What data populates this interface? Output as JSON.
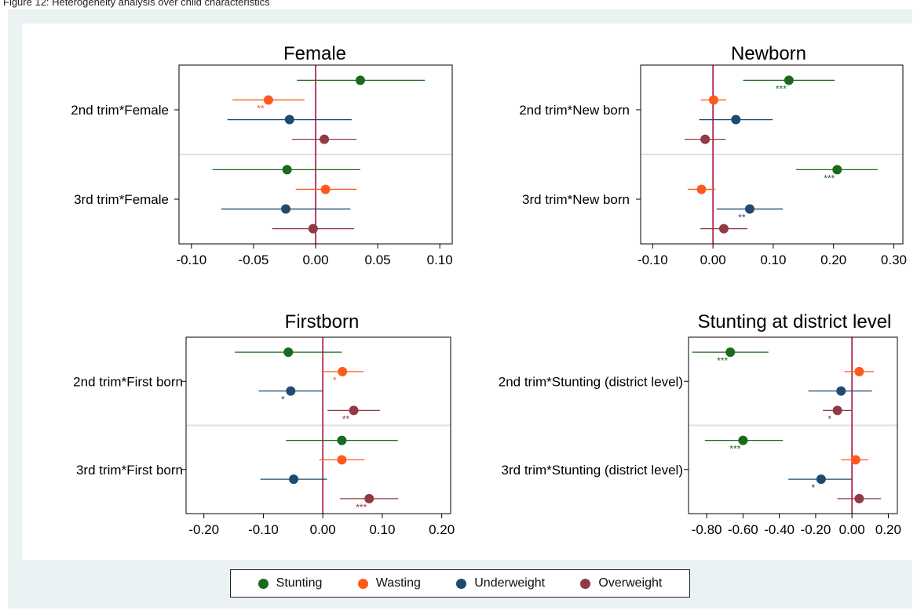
{
  "caption": "Figure 12: Heterogeneity analysis over child characteristics",
  "legend": [
    {
      "label": "Stunting",
      "color": "#1a6a1e"
    },
    {
      "label": "Wasting",
      "color": "#ff5a1e"
    },
    {
      "label": "Underweight",
      "color": "#1f4a72"
    },
    {
      "label": "Overweight",
      "color": "#8f3a44"
    }
  ],
  "chart_data": [
    {
      "type": "coefplot",
      "title": "Female",
      "categories": [
        "2nd trim*Female",
        "3rd trim*Female"
      ],
      "xlim": [
        -0.11,
        0.11
      ],
      "xticks": [
        -0.1,
        -0.05,
        0.0,
        0.05,
        0.1
      ],
      "xtick_labels": [
        "-0.10",
        "-0.05",
        "0.00",
        "0.05",
        "0.10"
      ],
      "series": [
        {
          "name": "Stunting",
          "values": [
            [
              0.036,
              -0.015,
              0.088,
              ""
            ],
            [
              -0.023,
              -0.083,
              0.036,
              ""
            ]
          ]
        },
        {
          "name": "Wasting",
          "values": [
            [
              -0.038,
              -0.067,
              -0.009,
              "**"
            ],
            [
              0.008,
              -0.016,
              0.033,
              ""
            ]
          ]
        },
        {
          "name": "Underweight",
          "values": [
            [
              -0.021,
              -0.071,
              0.029,
              ""
            ],
            [
              -0.024,
              -0.076,
              0.028,
              ""
            ]
          ]
        },
        {
          "name": "Overweight",
          "values": [
            [
              0.007,
              -0.019,
              0.033,
              ""
            ],
            [
              -0.002,
              -0.035,
              0.031,
              ""
            ]
          ]
        }
      ]
    },
    {
      "type": "coefplot",
      "title": "Newborn",
      "categories": [
        "2nd trim*New born",
        "3rd trim*New born"
      ],
      "xlim": [
        -0.12,
        0.315
      ],
      "xticks": [
        -0.1,
        0.0,
        0.1,
        0.2,
        0.3
      ],
      "xtick_labels": [
        "-0.10",
        "0.00",
        "0.10",
        "0.20",
        "0.30"
      ],
      "series": [
        {
          "name": "Stunting",
          "values": [
            [
              0.126,
              0.05,
              0.202,
              "***"
            ],
            [
              0.206,
              0.138,
              0.273,
              "***"
            ]
          ]
        },
        {
          "name": "Wasting",
          "values": [
            [
              0.001,
              -0.02,
              0.022,
              ""
            ],
            [
              -0.019,
              -0.042,
              0.004,
              ""
            ]
          ]
        },
        {
          "name": "Underweight",
          "values": [
            [
              0.038,
              -0.023,
              0.099,
              ""
            ],
            [
              0.061,
              0.006,
              0.116,
              "**"
            ]
          ]
        },
        {
          "name": "Overweight",
          "values": [
            [
              -0.013,
              -0.047,
              0.021,
              ""
            ],
            [
              0.018,
              -0.021,
              0.057,
              ""
            ]
          ]
        }
      ]
    },
    {
      "type": "coefplot",
      "title": "Firstborn",
      "categories": [
        "2nd trim*First born",
        "3rd trim*First born"
      ],
      "xlim": [
        -0.23,
        0.215
      ],
      "xticks": [
        -0.2,
        -0.1,
        0.0,
        0.1,
        0.2
      ],
      "xtick_labels": [
        "-0.20",
        "-0.10",
        "0.00",
        "0.10",
        "0.20"
      ],
      "series": [
        {
          "name": "Stunting",
          "values": [
            [
              -0.058,
              -0.148,
              0.032,
              ""
            ],
            [
              0.032,
              -0.062,
              0.126,
              ""
            ]
          ]
        },
        {
          "name": "Wasting",
          "values": [
            [
              0.033,
              -0.002,
              0.068,
              "*"
            ],
            [
              0.032,
              -0.006,
              0.07,
              ""
            ]
          ]
        },
        {
          "name": "Underweight",
          "values": [
            [
              -0.054,
              -0.108,
              0.0,
              "*"
            ],
            [
              -0.049,
              -0.105,
              0.007,
              ""
            ]
          ]
        },
        {
          "name": "Overweight",
          "values": [
            [
              0.052,
              0.008,
              0.096,
              "**"
            ],
            [
              0.078,
              0.029,
              0.127,
              "***"
            ]
          ]
        }
      ]
    },
    {
      "type": "coefplot",
      "title": "Stunting at district level",
      "categories": [
        "2nd trim*Stunting (district level)",
        "3rd trim*Stunting (district level)"
      ],
      "xlim": [
        -0.9,
        0.25
      ],
      "xticks": [
        -0.8,
        -0.6,
        -0.4,
        -0.2,
        0.0,
        0.2
      ],
      "xtick_labels": [
        "-0.80",
        "-0.60",
        "-0.40",
        "-0.20",
        "0.00",
        "0.20"
      ],
      "series": [
        {
          "name": "Stunting",
          "values": [
            [
              -0.67,
              -0.88,
              -0.46,
              "***"
            ],
            [
              -0.6,
              -0.81,
              -0.38,
              "***"
            ]
          ]
        },
        {
          "name": "Wasting",
          "values": [
            [
              0.04,
              -0.04,
              0.12,
              ""
            ],
            [
              0.02,
              -0.06,
              0.09,
              ""
            ]
          ]
        },
        {
          "name": "Underweight",
          "values": [
            [
              -0.06,
              -0.24,
              0.11,
              ""
            ],
            [
              -0.17,
              -0.35,
              0.0,
              "*"
            ]
          ]
        },
        {
          "name": "Overweight",
          "values": [
            [
              -0.08,
              -0.16,
              0.0,
              "*"
            ],
            [
              0.04,
              -0.08,
              0.16,
              ""
            ]
          ]
        }
      ]
    }
  ]
}
